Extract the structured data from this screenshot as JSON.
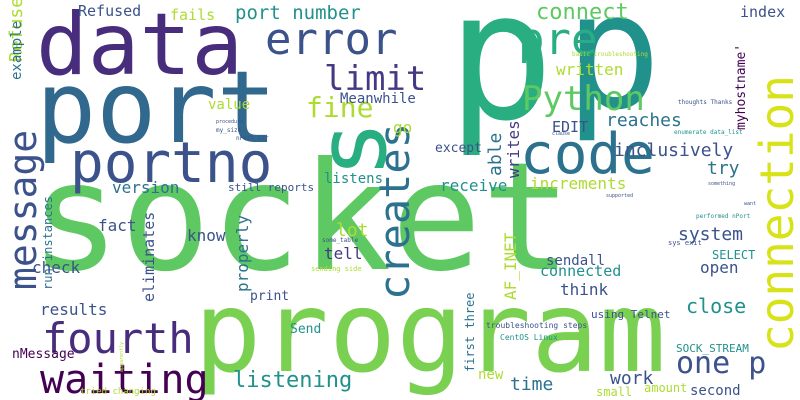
{
  "palette": {
    "dark_purple": "#440154",
    "purple": "#472d7b",
    "indigo": "#3b528b",
    "blue": "#2c728e",
    "teal": "#21918c",
    "green_teal": "#28ae80",
    "green": "#5ec962",
    "lime": "#addc30",
    "yellow": "#d8e219",
    "bright_yellow": "#fde725"
  },
  "words": {
    "socket": "socket",
    "p1": "p",
    "p2": "p",
    "program": "program",
    "port": "port",
    "data": "data",
    "s": "s",
    "connection": "connection",
    "code": "code",
    "portno": "portno",
    "message": "message",
    "creates": "creates",
    "fourth": "fourth",
    "waiting": "waiting",
    "error": "error",
    "limit": "limit",
    "pre": "pre",
    "python": "Python",
    "one_p": "one p",
    "fine": "fine",
    "connect": "connect",
    "listening": "listening",
    "refused": "Refused",
    "fails": "fails",
    "port_number": "port number",
    "index": "index",
    "myhostname": "myhostname'",
    "example": "example",
    "meanwhile": "Meanwhile",
    "written": "written",
    "value": "value",
    "go": "go",
    "reaches": "reaches",
    "edit": "EDIT",
    "able": "able",
    "writes": "writes",
    "inclusively": "inclusively",
    "except": "except",
    "receive": "receive",
    "increments": "increments",
    "try": "try",
    "version": "version",
    "still_reports": "still reports",
    "listens": "listens",
    "system": "system",
    "fact": "fact",
    "know": "know",
    "lot": "lot",
    "tell": "tell",
    "af_inet": "AF_INET",
    "select": "SELECT",
    "eliminates": "eliminates",
    "properly": "properly",
    "run_instances": "run instances",
    "check": "check",
    "sendall": "sendall",
    "connected": "connected",
    "open": "open",
    "think": "think",
    "results": "results",
    "print": "print",
    "close": "close",
    "send": "Send",
    "using_telnet": "using Telnet",
    "troubleshooting_steps": "troubleshooting steps",
    "centos_linux": "CentOS Linux",
    "first_three": "first three",
    "sock_stream": "SOCK_STREAM",
    "nmessage": "nMessage",
    "new": "new",
    "time": "time",
    "work": "work",
    "small": "small",
    "amount": "amount",
    "second": "second",
    "tried_changing": "tried changing",
    "sys_exit": "sys exit",
    "some_table": "some_table",
    "sending_side": "sending side",
    "nport_str": "nPort str",
    "my_size": "my_size",
    "performed_nport": "performed nPort",
    "thoughts_thanks": "thoughts Thanks",
    "enumerate_data_list": "enumerate data_list",
    "basic_troubleshooting": "basic troubleshooting",
    "want": "want",
    "procedure": "procedure",
    "something": "something",
    "supported": "supported",
    "apparently": "apparently",
    "clause": "clause"
  }
}
